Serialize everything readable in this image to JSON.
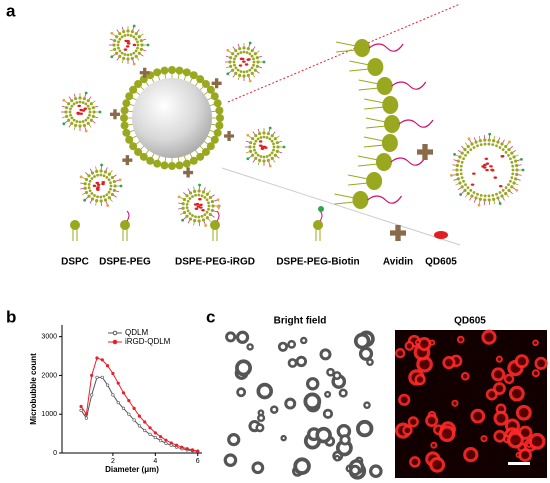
{
  "figure": {
    "panel_labels": [
      "a",
      "b",
      "c"
    ],
    "components": [
      "DSPC",
      "DSPE-PEG",
      "DSPE-PEG-iRGD",
      "DSPE-PEG-Biotin",
      "Avidin",
      "QD605"
    ],
    "image_titles": [
      "Bright field",
      "QD605"
    ]
  },
  "chart_data": {
    "type": "line",
    "xlabel": "Diameter (μm)",
    "ylabel": "Microbubble count",
    "x": [
      0.5,
      0.75,
      1,
      1.25,
      1.5,
      1.75,
      2,
      2.25,
      2.5,
      2.75,
      3,
      3.25,
      3.5,
      3.75,
      4,
      4.25,
      4.5,
      4.75,
      5,
      5.25,
      5.5,
      5.75,
      6
    ],
    "series": [
      {
        "name": "QDLM",
        "color": "#555555",
        "values": [
          1100,
          900,
          1500,
          1950,
          1950,
          1750,
          1500,
          1300,
          1150,
          1000,
          850,
          700,
          580,
          480,
          400,
          320,
          250,
          200,
          150,
          110,
          80,
          60,
          40
        ]
      },
      {
        "name": "iRGD-QDLM",
        "color": "#e8202a",
        "values": [
          1200,
          1000,
          2000,
          2450,
          2400,
          2250,
          2050,
          1800,
          1550,
          1350,
          1150,
          950,
          800,
          650,
          520,
          420,
          330,
          260,
          200,
          150,
          110,
          80,
          50
        ]
      }
    ],
    "xlim": [
      -0.4,
      6.2
    ],
    "ylim": [
      0,
      3300
    ],
    "xticks": [
      2,
      4,
      6
    ],
    "yticks": [
      0,
      1000,
      2000,
      3000
    ],
    "legend": "upper right"
  }
}
